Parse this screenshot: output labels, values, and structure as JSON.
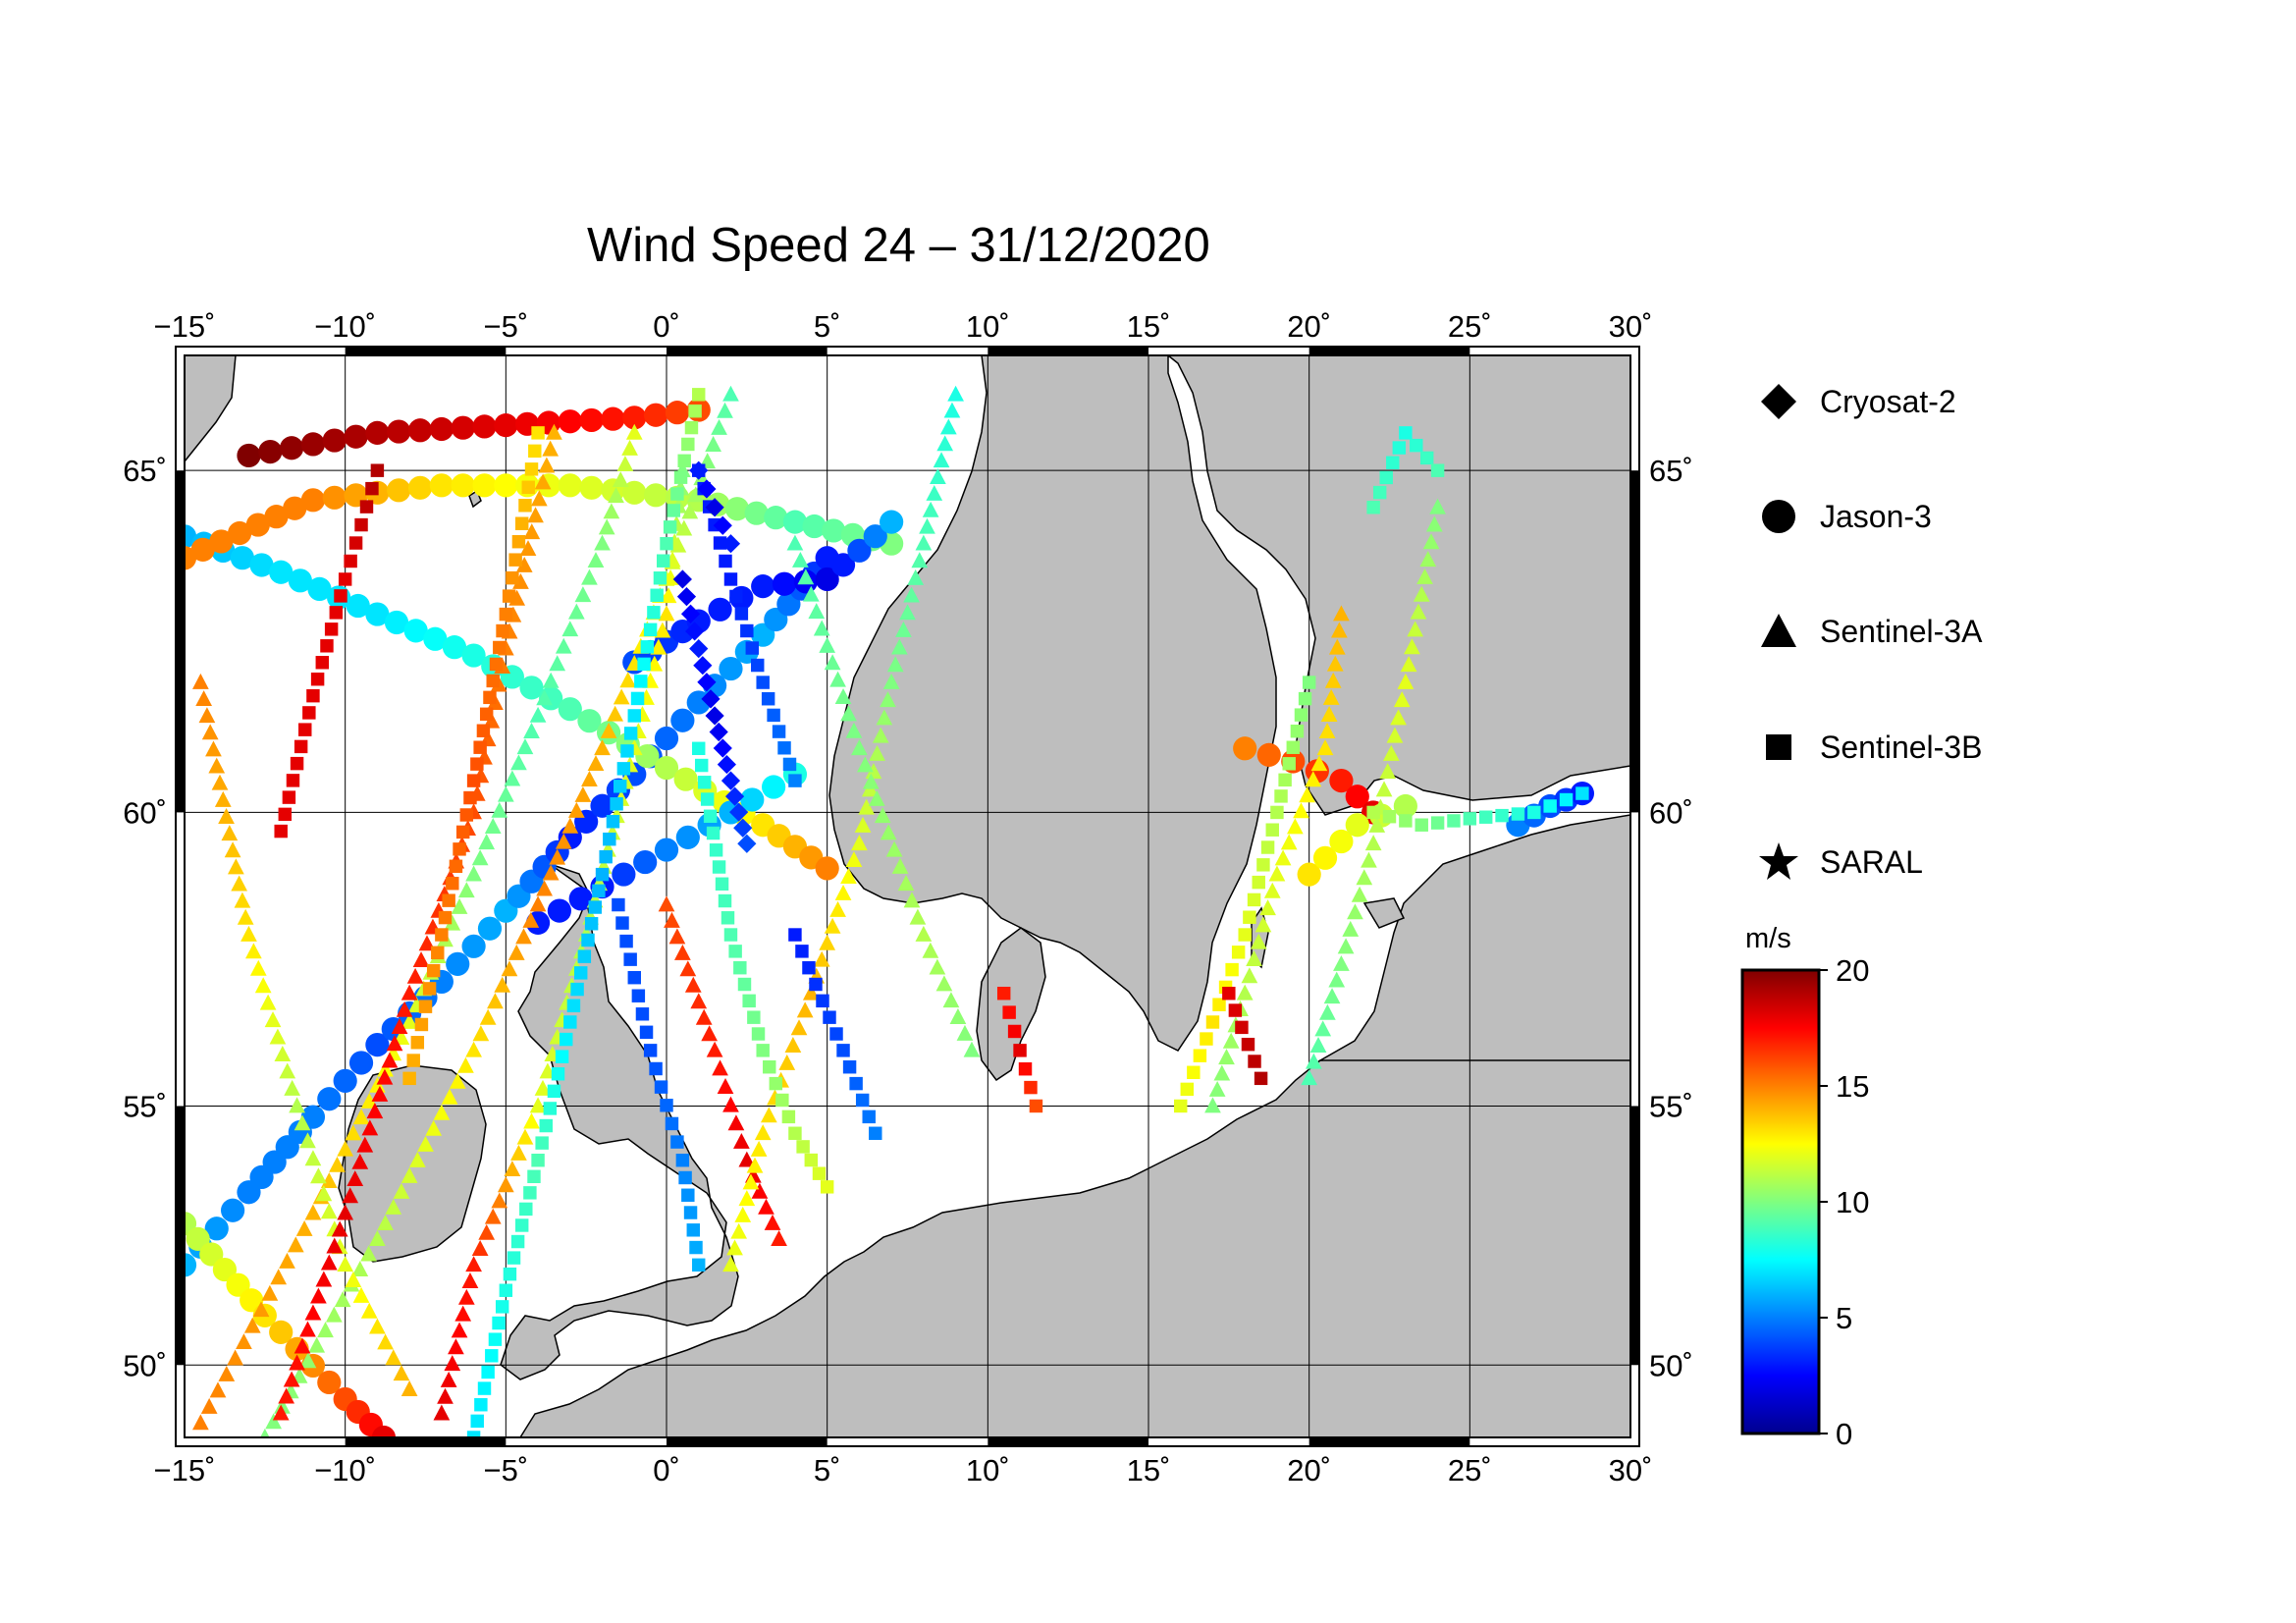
{
  "title": "Wind Speed 24 – 31/12/2020",
  "map": {
    "lon_range": [
      -15,
      30
    ],
    "lat_range": [
      48.5,
      66.5
    ],
    "longitude_ticks": [
      {
        "value": -15,
        "label": "−15˚"
      },
      {
        "value": -10,
        "label": "−10˚"
      },
      {
        "value": -5,
        "label": "−5˚"
      },
      {
        "value": 0,
        "label": "0˚"
      },
      {
        "value": 5,
        "label": "5˚"
      },
      {
        "value": 10,
        "label": "10˚"
      },
      {
        "value": 15,
        "label": "15˚"
      },
      {
        "value": 20,
        "label": "20˚"
      },
      {
        "value": 25,
        "label": "25˚"
      },
      {
        "value": 30,
        "label": "30˚"
      }
    ],
    "latitude_ticks": [
      {
        "value": 50,
        "label": "50˚"
      },
      {
        "value": 55,
        "label": "55˚"
      },
      {
        "value": 60,
        "label": "60˚"
      },
      {
        "value": 65,
        "label": "65˚"
      }
    ],
    "land_color": "#bebebe",
    "sea_color": "#ffffff",
    "grid": true
  },
  "legend": {
    "items": [
      {
        "label": "Cryosat-2",
        "symbol": "diamond-icon"
      },
      {
        "label": "Jason-3",
        "symbol": "circle-icon"
      },
      {
        "label": "Sentinel-3A",
        "symbol": "triangle-icon"
      },
      {
        "label": "Sentinel-3B",
        "symbol": "square-icon"
      },
      {
        "label": "SARAL",
        "symbol": "star-icon"
      }
    ]
  },
  "colorbar": {
    "unit": "m/s",
    "min": 0,
    "max": 20,
    "ticks": [
      {
        "value": 0,
        "label": "0"
      },
      {
        "value": 5,
        "label": "5"
      },
      {
        "value": 10,
        "label": "10"
      },
      {
        "value": 15,
        "label": "15"
      },
      {
        "value": 20,
        "label": "20"
      }
    ],
    "colormap": "jet"
  },
  "tracks": [
    {
      "satellite": "Jason-3",
      "points": [
        [
          -15,
          52.0
        ],
        [
          -13,
          53.4
        ],
        [
          -11,
          54.8
        ],
        [
          -9,
          56.1
        ],
        [
          -7,
          57.2
        ],
        [
          -5,
          58.4
        ],
        [
          -3,
          59.6
        ],
        [
          -1,
          60.6
        ],
        [
          1,
          61.7
        ],
        [
          3,
          62.7
        ],
        [
          5,
          63.8
        ]
      ],
      "speeds": [
        6,
        5,
        5,
        4,
        5,
        6,
        3,
        4,
        5,
        6,
        3
      ]
    },
    {
      "satellite": "Jason-3",
      "points": [
        [
          -15,
          64.1
        ],
        [
          -12,
          63.6
        ],
        [
          -9,
          63.0
        ],
        [
          -6,
          62.4
        ],
        [
          -3,
          61.6
        ],
        [
          0,
          60.7
        ],
        [
          3,
          59.8
        ],
        [
          5,
          59.1
        ]
      ],
      "speeds": [
        6,
        7,
        7,
        8,
        9,
        11,
        13,
        15
      ]
    },
    {
      "satellite": "Jason-3",
      "points": [
        [
          -15,
          52.8
        ],
        [
          -12.5,
          51.0
        ],
        [
          -10,
          49.3
        ],
        [
          -8.8,
          48.5
        ]
      ],
      "speeds": [
        11,
        13,
        16,
        18
      ]
    },
    {
      "satellite": "Jason-3",
      "points": [
        [
          -13,
          65.2
        ],
        [
          -9,
          65.5
        ],
        [
          -5,
          65.6
        ],
        [
          -1,
          65.7
        ],
        [
          1,
          65.8
        ]
      ],
      "speeds": [
        20,
        19,
        18,
        17,
        16
      ]
    },
    {
      "satellite": "Jason-3",
      "points": [
        [
          -15,
          63.8
        ],
        [
          -11,
          64.6
        ],
        [
          -7,
          64.8
        ],
        [
          -3,
          64.8
        ],
        [
          1,
          64.6
        ],
        [
          4,
          64.3
        ],
        [
          7,
          64.0
        ]
      ],
      "speeds": [
        15,
        15,
        13,
        12,
        11,
        9,
        10
      ]
    },
    {
      "satellite": "Jason-3",
      "points": [
        [
          -4,
          58.2
        ],
        [
          -2,
          58.8
        ],
        [
          0,
          59.4
        ],
        [
          2,
          60.0
        ],
        [
          4,
          60.6
        ]
      ],
      "speeds": [
        3,
        3,
        5,
        6,
        8
      ]
    },
    {
      "satellite": "Jason-3",
      "points": [
        [
          -1,
          62.3
        ],
        [
          1,
          62.9
        ],
        [
          3,
          63.4
        ],
        [
          5,
          63.5
        ],
        [
          7,
          64.3
        ]
      ],
      "speeds": [
        4,
        3,
        3,
        2,
        6
      ]
    },
    {
      "satellite": "Jason-3",
      "points": [
        [
          18,
          61.0
        ],
        [
          19.5,
          60.8
        ],
        [
          21,
          60.5
        ],
        [
          22,
          60.0
        ]
      ],
      "speeds": [
        15,
        16,
        17,
        18
      ]
    },
    {
      "satellite": "Jason-3",
      "points": [
        [
          20,
          59.0
        ],
        [
          21.5,
          59.8
        ],
        [
          23,
          60.1
        ]
      ],
      "speeds": [
        13,
        12,
        11
      ]
    },
    {
      "satellite": "Jason-3",
      "points": [
        [
          26.5,
          59.8
        ],
        [
          27.5,
          60.1
        ],
        [
          28.5,
          60.3
        ]
      ],
      "speeds": [
        5,
        4,
        3
      ]
    },
    {
      "satellite": "Sentinel-3A",
      "points": [
        [
          -14.5,
          48.8
        ],
        [
          -11,
          53
        ],
        [
          -8,
          56.5
        ],
        [
          -6,
          59
        ],
        [
          -4,
          61.5
        ],
        [
          -2,
          64.0
        ],
        [
          -1,
          65.5
        ]
      ],
      "speeds": [
        15,
        14,
        12,
        10,
        9,
        10,
        12
      ]
    },
    {
      "satellite": "Sentinel-3A",
      "points": [
        [
          -12.5,
          48.5
        ],
        [
          -9,
          52.5
        ],
        [
          -6,
          56.0
        ],
        [
          -4,
          58.5
        ],
        [
          -2,
          61
        ],
        [
          0,
          63.5
        ],
        [
          2,
          66
        ]
      ],
      "speeds": [
        10,
        11,
        13,
        15,
        14,
        12,
        9
      ]
    },
    {
      "satellite": "Sentinel-3A",
      "points": [
        [
          -14.5,
          62
        ],
        [
          -13,
          58
        ],
        [
          -11.5,
          55
        ],
        [
          -10,
          52
        ],
        [
          -8,
          49.5
        ]
      ],
      "speeds": [
        15,
        13,
        11,
        12,
        14
      ]
    },
    {
      "satellite": "Sentinel-3A",
      "points": [
        [
          -12,
          49
        ],
        [
          -10,
          53
        ],
        [
          -8,
          57
        ],
        [
          -6,
          60
        ],
        [
          -5,
          62.5
        ],
        [
          -3.5,
          65.5
        ]
      ],
      "speeds": [
        17,
        18,
        17,
        16,
        15,
        14
      ]
    },
    {
      "satellite": "Sentinel-3A",
      "points": [
        [
          -7,
          49
        ],
        [
          -6,
          52
        ],
        [
          -4,
          55
        ],
        [
          -2.5,
          58
        ],
        [
          -1,
          61
        ],
        [
          0,
          63
        ],
        [
          0.5,
          65
        ]
      ],
      "speeds": [
        18,
        17,
        12,
        11,
        12,
        13,
        10
      ]
    },
    {
      "satellite": "Sentinel-3A",
      "points": [
        [
          0,
          58.5
        ],
        [
          1.5,
          56
        ],
        [
          2.5,
          54
        ],
        [
          3.5,
          52.5
        ]
      ],
      "speeds": [
        16,
        17,
        18,
        17
      ]
    },
    {
      "satellite": "Sentinel-3A",
      "points": [
        [
          2,
          52
        ],
        [
          3,
          54.5
        ],
        [
          4.5,
          57
        ],
        [
          6,
          59.5
        ],
        [
          7,
          62
        ],
        [
          8,
          64
        ],
        [
          9,
          66
        ]
      ],
      "speeds": [
        12,
        13,
        14,
        12,
        10,
        9,
        8
      ]
    },
    {
      "satellite": "Sentinel-3A",
      "points": [
        [
          4,
          64
        ],
        [
          6,
          61
        ],
        [
          8,
          58
        ],
        [
          9.5,
          56
        ]
      ],
      "speeds": [
        9,
        10,
        11,
        10
      ]
    },
    {
      "satellite": "Sentinel-3A",
      "points": [
        [
          17,
          55
        ],
        [
          18,
          57
        ],
        [
          19,
          59
        ],
        [
          20.5,
          61
        ],
        [
          21,
          63
        ]
      ],
      "speeds": [
        10,
        11,
        12,
        13,
        14
      ]
    },
    {
      "satellite": "Sentinel-3A",
      "points": [
        [
          20,
          55.5
        ],
        [
          21,
          57.5
        ],
        [
          22,
          59.5
        ],
        [
          23,
          62
        ],
        [
          24,
          64.5
        ]
      ],
      "speeds": [
        9,
        10,
        11,
        12,
        10
      ]
    },
    {
      "satellite": "Sentinel-3B",
      "points": [
        [
          -12,
          59.7
        ],
        [
          -11,
          61.8
        ],
        [
          -10,
          63.5
        ],
        [
          -9,
          65
        ]
      ],
      "speeds": [
        18,
        18,
        18,
        19
      ]
    },
    {
      "satellite": "Sentinel-3B",
      "points": [
        [
          -8,
          55.5
        ],
        [
          -7,
          58
        ],
        [
          -6,
          60.5
        ],
        [
          -5,
          63
        ],
        [
          -4,
          65.5
        ]
      ],
      "speeds": [
        14,
        15,
        16,
        15,
        13
      ]
    },
    {
      "satellite": "Sentinel-3B",
      "points": [
        [
          -6,
          48.5
        ],
        [
          -5,
          51.5
        ],
        [
          -4,
          54
        ],
        [
          -3,
          56.5
        ],
        [
          -2,
          59
        ],
        [
          -1,
          61.5
        ],
        [
          0,
          64
        ],
        [
          1,
          66
        ]
      ],
      "speeds": [
        7,
        8,
        9,
        7,
        6,
        7,
        9,
        11
      ]
    },
    {
      "satellite": "Sentinel-3B",
      "points": [
        [
          -1.5,
          58.5
        ],
        [
          -0.5,
          56
        ],
        [
          0.5,
          54
        ],
        [
          1,
          52
        ]
      ],
      "speeds": [
        4,
        4,
        5,
        6
      ]
    },
    {
      "satellite": "Sentinel-3B",
      "points": [
        [
          1,
          61
        ],
        [
          2,
          58
        ],
        [
          3,
          56
        ],
        [
          4,
          54.5
        ],
        [
          5,
          53.5
        ]
      ],
      "speeds": [
        8,
        9,
        10,
        11,
        12
      ]
    },
    {
      "satellite": "Sentinel-3B",
      "points": [
        [
          4,
          58
        ],
        [
          5.5,
          56
        ],
        [
          6.5,
          54.5
        ]
      ],
      "speeds": [
        3,
        4,
        5
      ]
    },
    {
      "satellite": "Sentinel-3B",
      "points": [
        [
          1,
          65
        ],
        [
          2,
          63.5
        ],
        [
          3,
          62
        ],
        [
          4,
          60.5
        ]
      ],
      "speeds": [
        3,
        3,
        4,
        5
      ]
    },
    {
      "satellite": "Sentinel-3B",
      "points": [
        [
          10.5,
          57
        ],
        [
          11,
          56
        ],
        [
          11.5,
          55
        ]
      ],
      "speeds": [
        17,
        18,
        16
      ]
    },
    {
      "satellite": "Sentinel-3B",
      "points": [
        [
          16,
          55
        ],
        [
          17,
          56.5
        ],
        [
          18,
          58
        ],
        [
          19,
          60
        ],
        [
          20,
          62
        ]
      ],
      "speeds": [
        12,
        13,
        12,
        11,
        10
      ]
    },
    {
      "satellite": "Sentinel-3B",
      "points": [
        [
          17.5,
          57
        ],
        [
          18.5,
          55.5
        ]
      ],
      "speeds": [
        18,
        19
      ]
    },
    {
      "satellite": "Sentinel-3B",
      "points": [
        [
          22,
          64.5
        ],
        [
          23,
          65.5
        ],
        [
          24,
          65.0
        ]
      ],
      "speeds": [
        9,
        8,
        9
      ]
    },
    {
      "satellite": "Sentinel-3B",
      "points": [
        [
          22,
          60
        ],
        [
          23.5,
          59.8
        ],
        [
          25,
          59.9
        ],
        [
          27,
          60.0
        ],
        [
          28.5,
          60.3
        ]
      ],
      "speeds": [
        11,
        10,
        9,
        8,
        7
      ]
    },
    {
      "satellite": "Cryosat-2",
      "points": [
        [
          0.5,
          63.5
        ],
        [
          1,
          62.5
        ],
        [
          1.5,
          61.5
        ],
        [
          2,
          60.5
        ],
        [
          2.5,
          59.5
        ]
      ],
      "speeds": [
        2,
        3,
        2,
        3,
        4
      ]
    },
    {
      "satellite": "Cryosat-2",
      "points": [
        [
          1,
          65
        ],
        [
          1.5,
          64.5
        ],
        [
          2,
          64
        ]
      ],
      "speeds": [
        3,
        2,
        3
      ]
    }
  ]
}
